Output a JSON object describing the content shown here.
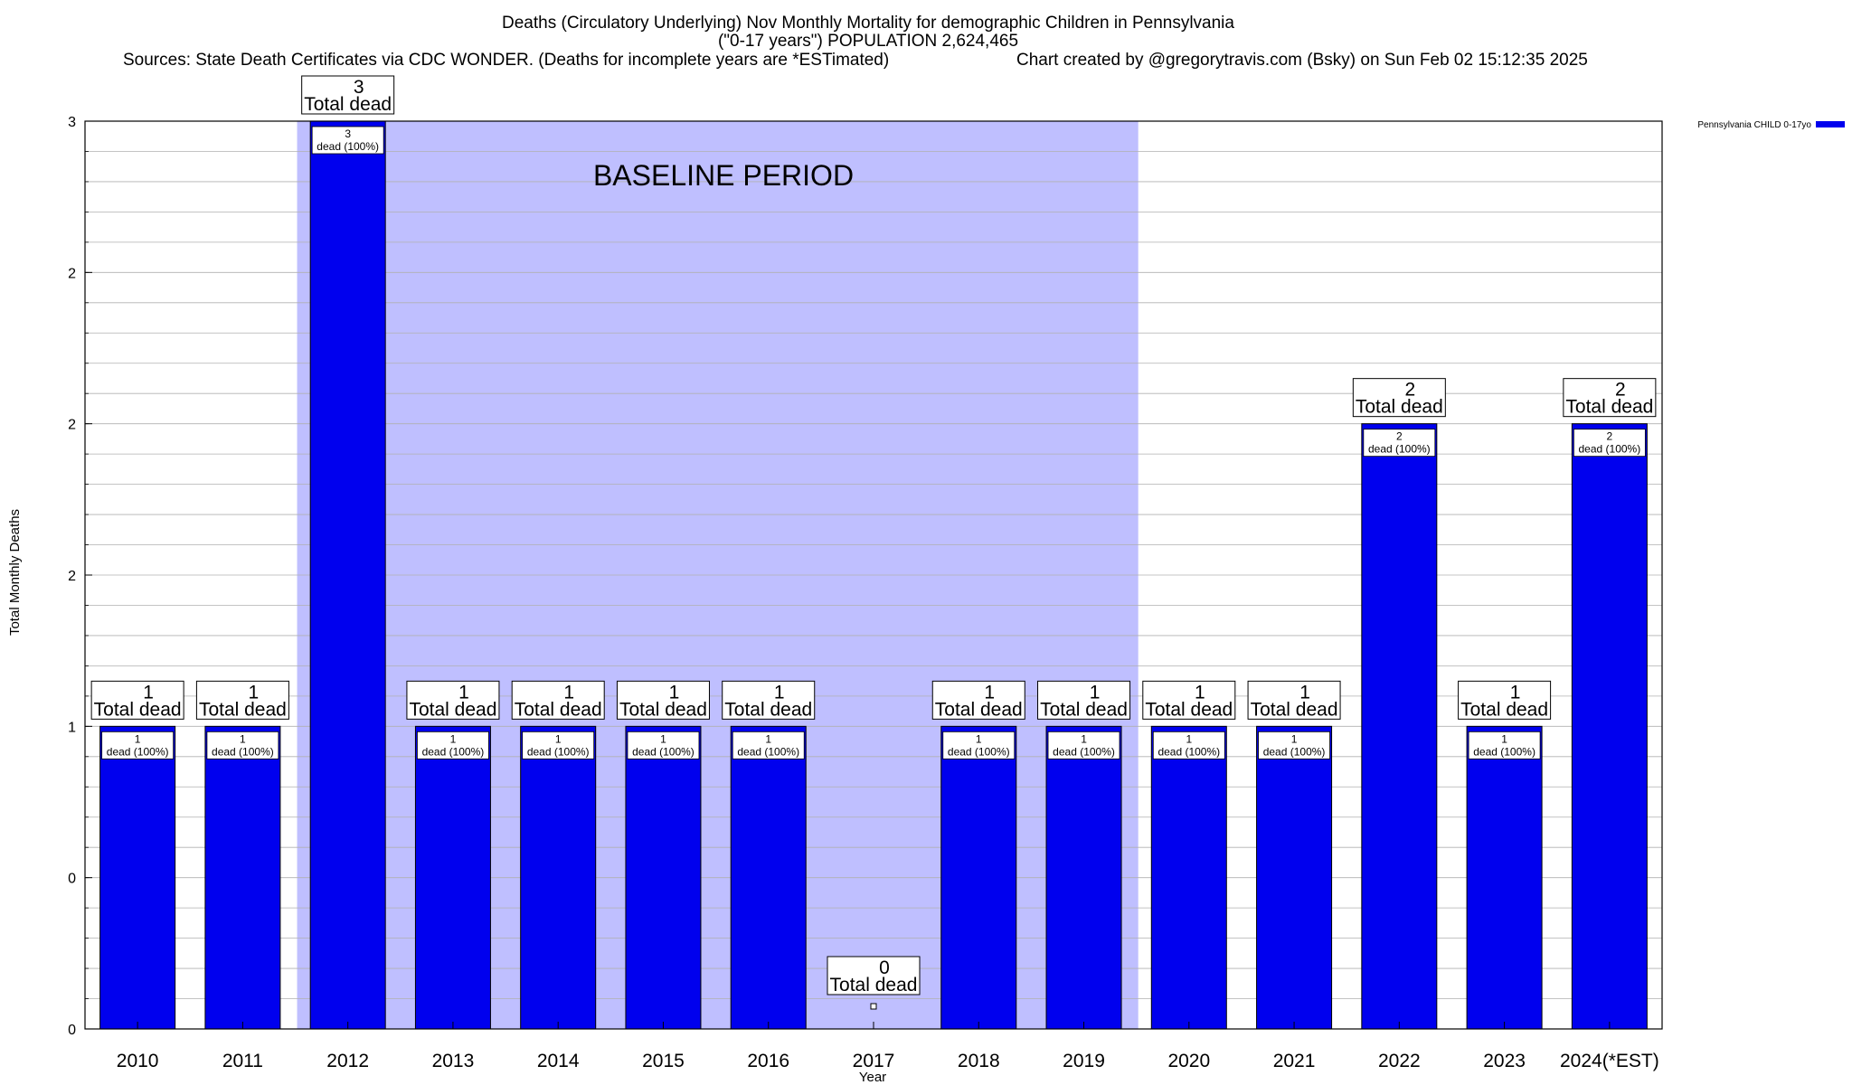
{
  "chart_data": {
    "type": "bar",
    "title_lines": [
      "Deaths (Circulatory Underlying) Nov Monthly Mortality for demographic Children in Pennsylvania",
      "(\"0-17 years\") POPULATION 2,624,465"
    ],
    "sources": "Sources: State Death Certificates via CDC WONDER. (Deaths for incomplete years are *ESTimated)",
    "credit": "Chart created by @gregorytravis.com (Bsky) on Sun Feb 02 15:12:35 2025",
    "xlabel": "Year",
    "ylabel": "Total Monthly Deaths",
    "ylim": [
      0,
      3
    ],
    "y_ticks": [
      {
        "value": 0,
        "label": "0"
      },
      {
        "value": 0.5,
        "label": "0"
      },
      {
        "value": 1,
        "label": "1"
      },
      {
        "value": 1.5,
        "label": "2"
      },
      {
        "value": 2,
        "label": "2"
      },
      {
        "value": 2.5,
        "label": "2"
      },
      {
        "value": 3,
        "label": "3"
      }
    ],
    "grid": true,
    "categories": [
      "2010",
      "2011",
      "2012",
      "2013",
      "2014",
      "2015",
      "2016",
      "2017",
      "2018",
      "2019",
      "2020",
      "2021",
      "2022",
      "2023",
      "2024(*EST)"
    ],
    "series": [
      {
        "name": "Pennsylvania CHILD 0-17yo",
        "color": "#0000ee",
        "values": [
          1,
          1,
          3,
          1,
          1,
          1,
          1,
          0,
          1,
          1,
          1,
          1,
          2,
          1,
          2
        ]
      }
    ],
    "total_labels": [
      "1",
      "1",
      "3",
      "1",
      "1",
      "1",
      "1",
      "0",
      "1",
      "1",
      "1",
      "1",
      "2",
      "1",
      "2"
    ],
    "total_caption": "Total dead",
    "inner_labels": [
      "1",
      "1",
      "3",
      "1",
      "1",
      "1",
      "1",
      "",
      "1",
      "1",
      "1",
      "1",
      "2",
      "1",
      "2"
    ],
    "inner_caption": "dead (100%)",
    "baseline": {
      "label": "BASELINE PERIOD",
      "start": "2012",
      "end": "2019",
      "color": "#bfbfff"
    },
    "legend": {
      "placement": "top-right",
      "entries": [
        "Pennsylvania CHILD 0-17yo"
      ]
    }
  }
}
